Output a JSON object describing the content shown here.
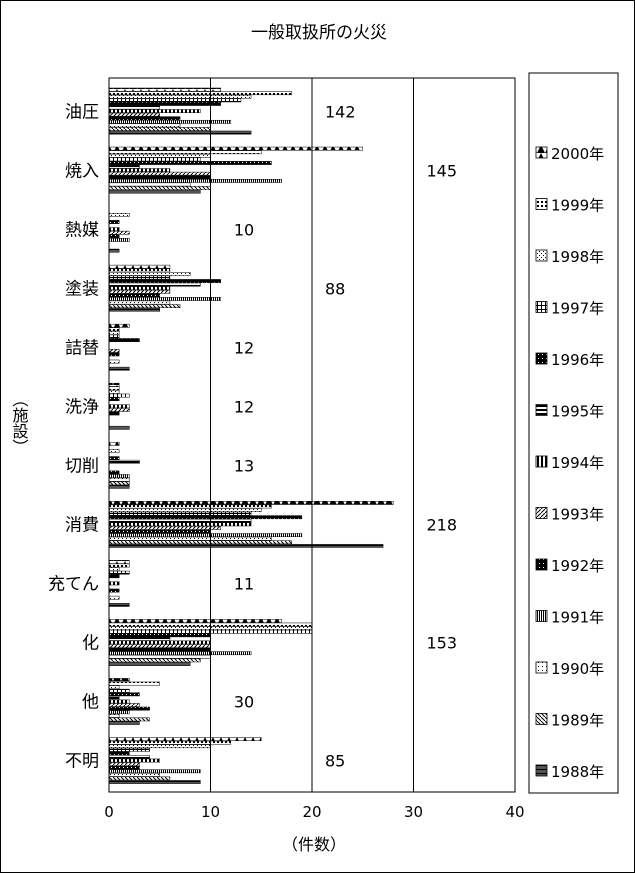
{
  "chart_data": {
    "type": "bar",
    "orientation": "horizontal",
    "title": "一般取扱所の火災",
    "xlabel": "（件数）",
    "ylabel": "（施設）",
    "xlim": [
      0,
      40
    ],
    "xticks": [
      0,
      10,
      20,
      30,
      40
    ],
    "grid": true,
    "legend_position": "right",
    "categories": [
      "油圧",
      "焼入",
      "熱媒",
      "塗装",
      "詰替",
      "洗浄",
      "切削",
      "消費",
      "充てん",
      "化",
      "他",
      "不明"
    ],
    "totals": [
      142,
      145,
      10,
      88,
      12,
      12,
      13,
      218,
      11,
      153,
      30,
      85
    ],
    "series": [
      {
        "name": "2000年",
        "values": [
          11,
          25,
          0,
          6,
          2,
          1,
          1,
          28,
          2,
          17,
          2,
          15
        ]
      },
      {
        "name": "1999年",
        "values": [
          18,
          15,
          0,
          6,
          1,
          1,
          0,
          16,
          2,
          20,
          5,
          12
        ]
      },
      {
        "name": "1998年",
        "values": [
          14,
          10,
          2,
          8,
          1,
          1,
          1,
          15,
          1,
          20,
          1,
          10
        ]
      },
      {
        "name": "1997年",
        "values": [
          13,
          9,
          0,
          6,
          1,
          2,
          0,
          14,
          2,
          20,
          2,
          4
        ]
      },
      {
        "name": "1996年",
        "values": [
          11,
          16,
          1,
          11,
          3,
          1,
          1,
          19,
          1,
          10,
          3,
          2
        ]
      },
      {
        "name": "1995年",
        "values": [
          5,
          3,
          0,
          9,
          0,
          0,
          3,
          14,
          0,
          6,
          1,
          4
        ]
      },
      {
        "name": "1994年",
        "values": [
          9,
          6,
          1,
          6,
          0,
          2,
          0,
          14,
          1,
          10,
          2,
          5
        ]
      },
      {
        "name": "1993年",
        "values": [
          5,
          10,
          2,
          6,
          1,
          2,
          0,
          11,
          0,
          10,
          3,
          3
        ]
      },
      {
        "name": "1992年",
        "values": [
          7,
          10,
          1,
          5,
          1,
          1,
          1,
          10,
          1,
          10,
          4,
          3
        ]
      },
      {
        "name": "1991年",
        "values": [
          12,
          17,
          2,
          11,
          0,
          0,
          2,
          19,
          0,
          14,
          2,
          9
        ]
      },
      {
        "name": "1990年",
        "values": [
          7,
          8,
          0,
          6,
          1,
          0,
          2,
          16,
          1,
          10,
          1,
          5
        ]
      },
      {
        "name": "1989年",
        "values": [
          10,
          10,
          0,
          7,
          0,
          0,
          2,
          18,
          0,
          9,
          4,
          6
        ]
      },
      {
        "name": "1988年",
        "values": [
          14,
          9,
          1,
          5,
          2,
          2,
          2,
          27,
          2,
          8,
          3,
          9
        ]
      }
    ]
  }
}
